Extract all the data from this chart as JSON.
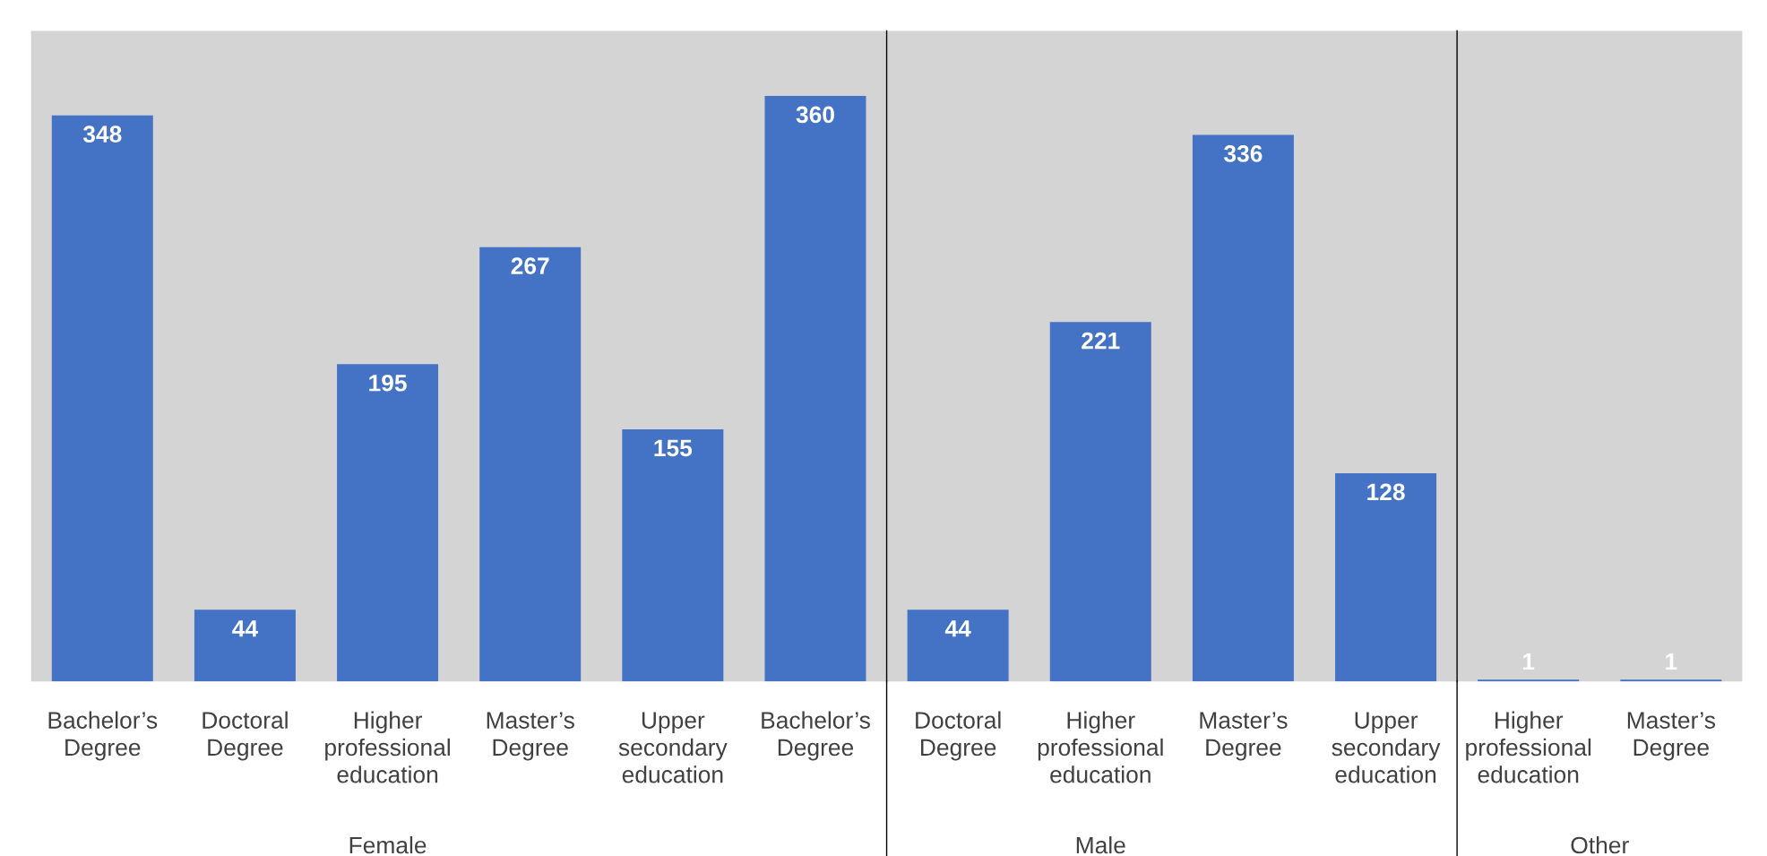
{
  "chart_data": {
    "type": "bar",
    "categories": [
      "Bachelor’s Degree",
      "Doctoral Degree",
      "Higher professional education",
      "Master’s Degree",
      "Upper secondary education",
      "Bachelor’s Degree",
      "Doctoral Degree",
      "Higher professional education",
      "Master’s Degree",
      "Upper secondary education",
      "Higher professional education",
      "Master’s Degree"
    ],
    "values": [
      348,
      44,
      195,
      267,
      155,
      360,
      44,
      221,
      336,
      128,
      1,
      1
    ],
    "color": "#4472c4",
    "ylim": [
      0,
      400
    ],
    "data_labels": true,
    "grid": false,
    "annotations": [
      "Female",
      "Male",
      "Other"
    ]
  }
}
